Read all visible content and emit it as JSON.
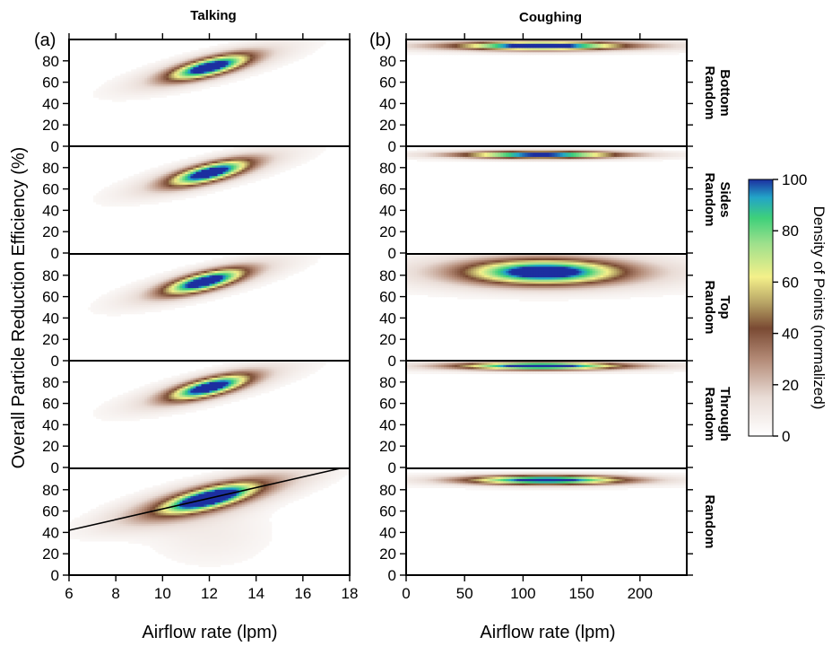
{
  "chart_data": {
    "type": "heatmap",
    "columns": [
      {
        "key": "talking",
        "title": "Talking",
        "panel_label": "(a)",
        "xlabel": "Airflow rate (lpm)",
        "xlim": [
          6,
          18
        ],
        "xticks": [
          "6",
          "8",
          "10",
          "12",
          "14",
          "16",
          "18"
        ],
        "rows": [
          {
            "cx": 12.0,
            "cy": 74,
            "sx": 1.1,
            "sy": 5.5,
            "slope": 5.0,
            "tail": 1.0
          },
          {
            "cx": 12.0,
            "cy": 75,
            "sx": 1.1,
            "sy": 5.5,
            "slope": 5.0,
            "tail": 1.0
          },
          {
            "cx": 11.8,
            "cy": 74,
            "sx": 1.1,
            "sy": 5.5,
            "slope": 5.0,
            "tail": 1.0
          },
          {
            "cx": 12.0,
            "cy": 75,
            "sx": 1.1,
            "sy": 5.5,
            "slope": 5.0,
            "tail": 1.0
          },
          {
            "cx": 12.0,
            "cy": 72,
            "sx": 1.2,
            "sy": 6.0,
            "slope": 5.0,
            "tail": 1.8
          }
        ]
      },
      {
        "key": "coughing",
        "title": "Coughing",
        "panel_label": "(b)",
        "xlabel": "Airflow rate (lpm)",
        "xlim": [
          0,
          240
        ],
        "xticks": [
          "0",
          "50",
          "100",
          "150",
          "200"
        ],
        "rows": [
          {
            "cx": 115,
            "cy": 94,
            "sx": 45,
            "sy": 2.5,
            "slope": 0.0,
            "tail": 1.0
          },
          {
            "cx": 115,
            "cy": 92,
            "sx": 45,
            "sy": 2.2,
            "slope": 0.0,
            "tail": 0.5
          },
          {
            "cx": 118,
            "cy": 83,
            "sx": 42,
            "sy": 7.5,
            "slope": 0.0,
            "tail": 1.0
          },
          {
            "cx": 115,
            "cy": 95,
            "sx": 45,
            "sy": 2.3,
            "slope": 0.0,
            "tail": 0.8
          },
          {
            "cx": 120,
            "cy": 89,
            "sx": 45,
            "sy": 2.8,
            "slope": 0.0,
            "tail": 0.6
          }
        ]
      }
    ],
    "row_labels": [
      [
        "Random",
        "Bottom"
      ],
      [
        "Random",
        "Sides"
      ],
      [
        "Random",
        "Top"
      ],
      [
        "Random",
        "Through"
      ],
      [
        "Random"
      ]
    ],
    "ylabel": "Overall Particle Reduction Efficiency (%)",
    "ylim": [
      0,
      100
    ],
    "yticks": [
      "0",
      "20",
      "40",
      "60",
      "80"
    ],
    "fit_line": {
      "x": [
        6,
        17.6
      ],
      "y": [
        42,
        100
      ]
    },
    "colorbar": {
      "label": "Density of Points (normalized)",
      "ticks": [
        "0",
        "20",
        "40",
        "60",
        "80",
        "100"
      ],
      "range": [
        0,
        100
      ],
      "stops": [
        {
          "v": 0,
          "color": "#ffffff"
        },
        {
          "v": 15,
          "color": "#e9dcd6"
        },
        {
          "v": 30,
          "color": "#b38a76"
        },
        {
          "v": 42,
          "color": "#7a4a33"
        },
        {
          "v": 52,
          "color": "#b8a566"
        },
        {
          "v": 62,
          "color": "#f4f08a"
        },
        {
          "v": 75,
          "color": "#9ee08c"
        },
        {
          "v": 85,
          "color": "#3ed07a"
        },
        {
          "v": 93,
          "color": "#22a4c8"
        },
        {
          "v": 100,
          "color": "#1c2fa0"
        }
      ]
    }
  }
}
